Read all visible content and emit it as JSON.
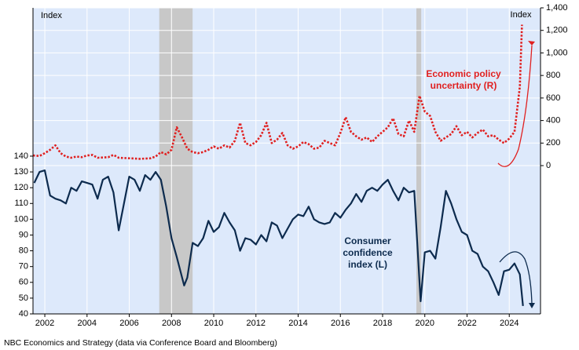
{
  "chart_data": {
    "type": "line",
    "left_axis_label": "Index",
    "right_axis_label": "Index",
    "source": "NBC Economics and Strategy (data via Conference Board and Bloomberg)",
    "annotations": [
      [
        "Economic policy",
        "uncertainty (R)"
      ],
      [
        "Consumer",
        "confidence",
        "index (L)"
      ]
    ],
    "xlim": [
      2001.94,
      2025.98
    ],
    "xticks": [
      {
        "value": 2002.5,
        "label": "2002"
      },
      {
        "value": 2004.5,
        "label": "2004"
      },
      {
        "value": 2006.5,
        "label": "2006"
      },
      {
        "value": 2008.5,
        "label": "2008"
      },
      {
        "value": 2010.5,
        "label": "2010"
      },
      {
        "value": 2012.5,
        "label": "2012"
      },
      {
        "value": 2014.5,
        "label": "2014"
      },
      {
        "value": 2016.5,
        "label": "2016"
      },
      {
        "value": 2018.5,
        "label": "2018"
      },
      {
        "value": 2020.5,
        "label": "2020"
      },
      {
        "value": 2022.5,
        "label": "2022"
      },
      {
        "value": 2024.5,
        "label": "2024"
      }
    ],
    "ylim": [
      40,
      234
    ],
    "yticks": [
      40,
      50,
      60,
      70,
      80,
      90,
      100,
      110,
      120,
      130,
      140
    ],
    "y2lim": [
      -1316,
      1400
    ],
    "y2ticks": [
      0,
      200,
      400,
      600,
      800,
      {
        "value": 1000,
        "label": "1,000"
      },
      {
        "value": 1200,
        "label": "1,200"
      },
      {
        "value": 1400,
        "label": "1,400"
      }
    ],
    "grid": true,
    "recessions": [
      [
        2007.92,
        2009.5
      ],
      [
        2020.1,
        2020.33
      ]
    ],
    "series": [
      {
        "name": "Consumer confidence index (L)",
        "color": "#0d2b4e",
        "axis": "y",
        "x": [
          2002.0,
          2002.25,
          2002.5,
          2002.75,
          2003.0,
          2003.25,
          2003.5,
          2003.75,
          2004.0,
          2004.25,
          2004.5,
          2004.75,
          2005.0,
          2005.25,
          2005.5,
          2005.75,
          2006.0,
          2006.25,
          2006.5,
          2006.75,
          2007.0,
          2007.25,
          2007.5,
          2007.75,
          2008.0,
          2008.25,
          2008.5,
          2008.75,
          2009.1,
          2009.25,
          2009.5,
          2009.75,
          2010.0,
          2010.25,
          2010.5,
          2010.75,
          2011.0,
          2011.25,
          2011.5,
          2011.75,
          2012.0,
          2012.25,
          2012.5,
          2012.75,
          2013.0,
          2013.25,
          2013.5,
          2013.75,
          2014.0,
          2014.25,
          2014.5,
          2014.75,
          2015.0,
          2015.25,
          2015.5,
          2015.75,
          2016.0,
          2016.25,
          2016.5,
          2016.75,
          2017.0,
          2017.25,
          2017.5,
          2017.75,
          2018.0,
          2018.25,
          2018.5,
          2018.75,
          2019.0,
          2019.25,
          2019.5,
          2019.75,
          2020.0,
          2020.3,
          2020.5,
          2020.75,
          2021.0,
          2021.25,
          2021.5,
          2021.75,
          2022.0,
          2022.25,
          2022.5,
          2022.75,
          2023.0,
          2023.25,
          2023.5,
          2023.75,
          2024.0,
          2024.25,
          2024.5,
          2024.75,
          2025.0,
          2025.15
        ],
        "values": [
          123,
          130,
          131,
          115,
          113,
          112,
          110,
          120,
          118,
          124,
          123,
          122,
          113,
          125,
          127,
          117,
          93,
          110,
          127,
          125,
          118,
          128,
          125,
          130,
          125,
          108,
          88,
          76,
          58,
          63,
          85,
          83,
          88,
          99,
          92,
          95,
          104,
          98,
          93,
          80,
          88,
          87,
          84,
          90,
          86,
          98,
          96,
          88,
          94,
          100,
          103,
          102,
          108,
          100,
          98,
          97,
          98,
          104,
          101,
          106,
          110,
          116,
          111,
          118,
          120,
          118,
          122,
          125,
          118,
          112,
          120,
          117,
          118,
          48,
          79,
          80,
          75,
          95,
          118,
          110,
          100,
          92,
          90,
          80,
          78,
          70,
          67,
          60,
          52,
          67,
          68,
          72,
          65,
          45
        ]
      },
      {
        "name": "Economic policy uncertainty (R)",
        "color": "#e02020",
        "axis": "y2",
        "x": [
          2001.94,
          2002.25,
          2002.5,
          2002.75,
          2003.0,
          2003.25,
          2003.5,
          2003.75,
          2004.0,
          2004.25,
          2004.5,
          2004.75,
          2005.0,
          2005.5,
          2005.75,
          2006.0,
          2006.5,
          2007.0,
          2007.5,
          2007.75,
          2008.0,
          2008.25,
          2008.5,
          2008.75,
          2009.0,
          2009.25,
          2009.5,
          2009.75,
          2010.0,
          2010.25,
          2010.5,
          2010.75,
          2011.0,
          2011.25,
          2011.5,
          2011.75,
          2012.0,
          2012.25,
          2012.5,
          2012.75,
          2013.0,
          2013.25,
          2013.5,
          2013.75,
          2014.0,
          2014.25,
          2014.5,
          2014.75,
          2015.0,
          2015.25,
          2015.5,
          2015.75,
          2016.0,
          2016.25,
          2016.5,
          2016.75,
          2017.0,
          2017.25,
          2017.5,
          2017.75,
          2018.0,
          2018.25,
          2018.5,
          2018.75,
          2019.0,
          2019.25,
          2019.5,
          2019.75,
          2020.0,
          2020.25,
          2020.5,
          2020.75,
          2021.0,
          2021.25,
          2021.5,
          2021.75,
          2022.0,
          2022.25,
          2022.5,
          2022.75,
          2023.0,
          2023.25,
          2023.5,
          2023.75,
          2024.0,
          2024.25,
          2024.5,
          2024.75,
          2025.0,
          2025.1
        ],
        "values": [
          90,
          85,
          110,
          140,
          180,
          110,
          80,
          70,
          80,
          75,
          90,
          95,
          70,
          75,
          95,
          70,
          65,
          60,
          65,
          80,
          120,
          100,
          140,
          340,
          250,
          150,
          120,
          110,
          120,
          140,
          170,
          150,
          180,
          160,
          220,
          380,
          200,
          180,
          210,
          270,
          380,
          200,
          230,
          290,
          180,
          150,
          170,
          210,
          190,
          150,
          160,
          220,
          200,
          180,
          290,
          430,
          300,
          260,
          230,
          250,
          210,
          260,
          300,
          340,
          420,
          280,
          260,
          400,
          300,
          620,
          480,
          440,
          300,
          220,
          250,
          280,
          350,
          270,
          300,
          250,
          290,
          320,
          260,
          270,
          230,
          200,
          240,
          300,
          700,
          1250
        ]
      }
    ]
  }
}
